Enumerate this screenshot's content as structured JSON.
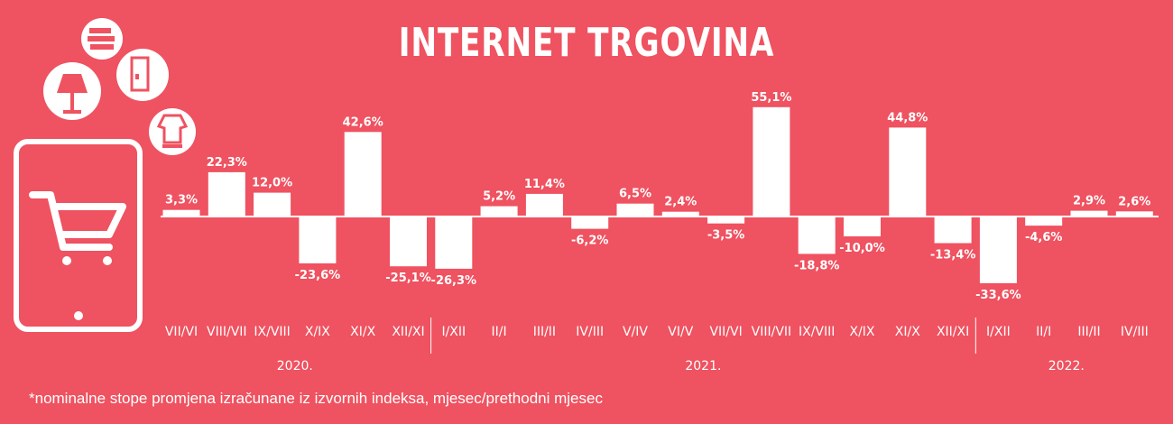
{
  "colors": {
    "background": "#ef5260",
    "foreground": "#ffffff"
  },
  "footnote": "*nominalne stope promjena izračunane iz izvornih indeksa, mjesec/prethodni mjesec",
  "icons": [
    "tablet-icon",
    "shopping-cart-icon",
    "lamp-icon",
    "books-icon",
    "fridge-icon",
    "clothes-icon"
  ],
  "chart_data": {
    "type": "bar",
    "title": "INTERNET TRGOVINA",
    "xlabel": "",
    "ylabel": "",
    "ylim": [
      -40,
      60
    ],
    "grid": false,
    "legend": "none",
    "categories": [
      "VII/VI",
      "VIII/VII",
      "IX/VIII",
      "X/IX",
      "XI/X",
      "XII/XI",
      "I/XII",
      "II/I",
      "III/II",
      "IV/III",
      "V/IV",
      "VI/V",
      "VII/VI",
      "VIII/VII",
      "IX/VIII",
      "X/IX",
      "XI/X",
      "XII/XI",
      "I/XII",
      "II/I",
      "III/II",
      "IV/III"
    ],
    "values": [
      3.3,
      22.3,
      12.0,
      -23.6,
      42.6,
      -25.1,
      -26.3,
      5.2,
      11.4,
      -6.2,
      6.5,
      2.4,
      -3.5,
      55.1,
      -18.8,
      -10.0,
      44.8,
      -13.4,
      -33.6,
      -4.6,
      2.9,
      2.6
    ],
    "value_labels": [
      "3,3%",
      "22,3%",
      "12,0%",
      "-23,6%",
      "42,6%",
      "-25,1%",
      "-26,3%",
      "5,2%",
      "11,4%",
      "-6,2%",
      "6,5%",
      "2,4%",
      "-3,5%",
      "55,1%",
      "-18,8%",
      "-10,0%",
      "44,8%",
      "-13,4%",
      "-33,6%",
      "-4,6%",
      "2,9%",
      "2,6%"
    ],
    "years": [
      {
        "label": "2020.",
        "start": 0,
        "end": 5
      },
      {
        "label": "2021.",
        "start": 6,
        "end": 17
      },
      {
        "label": "2022.",
        "start": 18,
        "end": 21
      }
    ]
  }
}
